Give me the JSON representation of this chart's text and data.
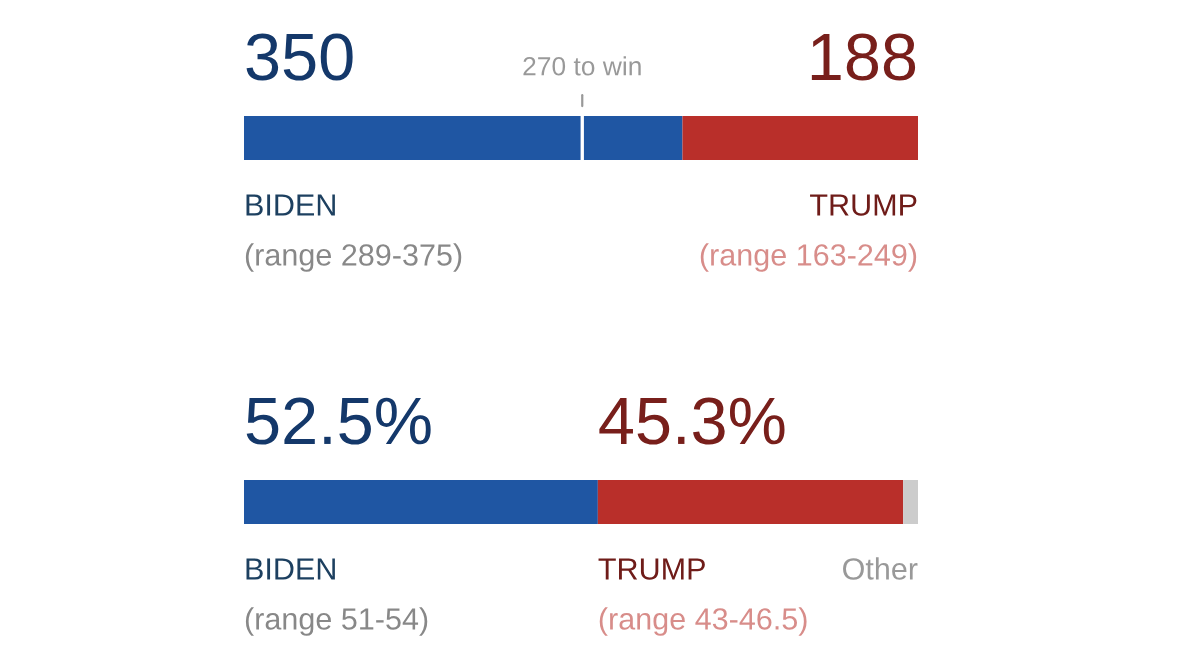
{
  "chart_data": [
    {
      "type": "bar",
      "orientation": "horizontal",
      "stacked": true,
      "categories": [
        null
      ],
      "xlim": [
        0,
        538
      ],
      "series": [
        {
          "name": "BIDEN",
          "color": "#1f56a3",
          "values": [
            350
          ],
          "value_labels": [
            "350"
          ]
        },
        {
          "name": "TRUMP",
          "color": "#b92f2a",
          "values": [
            188
          ],
          "value_labels": [
            "188"
          ]
        }
      ],
      "annotations": [
        "(range 289-375)",
        "(range 163-249)"
      ],
      "ref_lines": [
        {
          "axis": "x",
          "value": 270,
          "label": "270 to win",
          "color": "#ffffff"
        }
      ]
    },
    {
      "type": "bar",
      "orientation": "horizontal",
      "stacked": true,
      "categories": [
        null
      ],
      "xlim": [
        0,
        100
      ],
      "series": [
        {
          "name": "BIDEN",
          "color": "#1f56a3",
          "values": [
            52.5
          ],
          "value_labels": [
            "52.5%"
          ]
        },
        {
          "name": "TRUMP",
          "color": "#b92f2a",
          "values": [
            45.3
          ],
          "value_labels": [
            "45.3%"
          ]
        },
        {
          "name": "Other",
          "color": "#cccccc",
          "values": [
            2.2
          ],
          "value_labels": [
            null
          ]
        }
      ],
      "annotations": [
        "(range 51-54)",
        "(range 43-46.5)"
      ]
    }
  ]
}
